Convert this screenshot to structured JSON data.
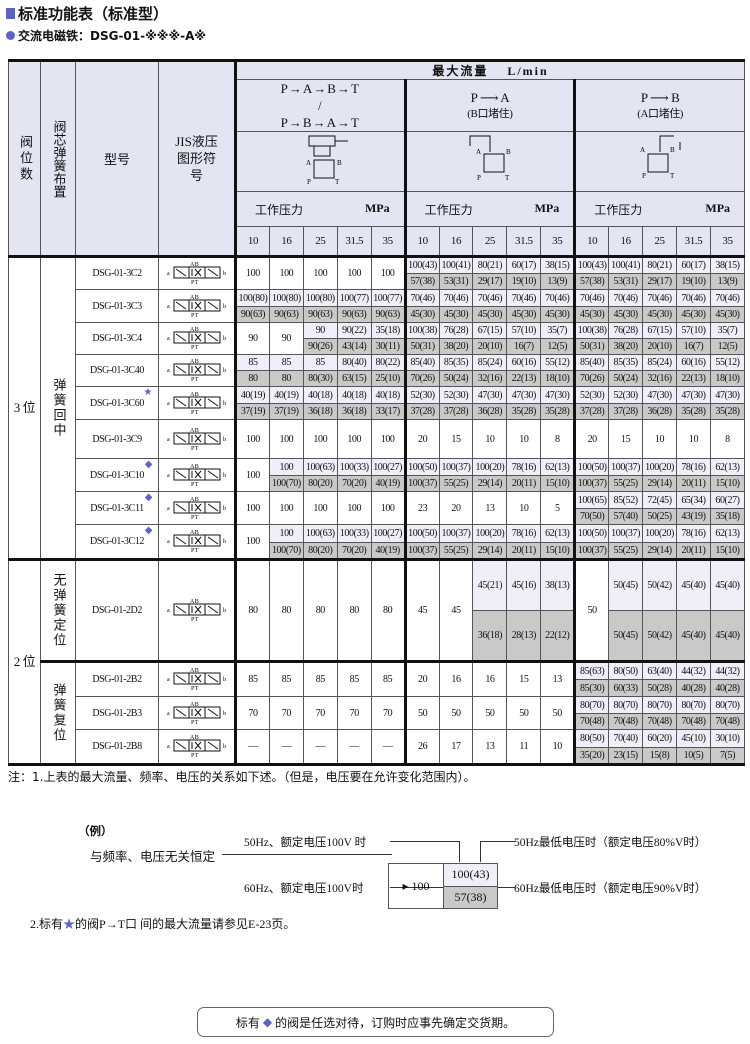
{
  "title": "标准功能表（标准型）",
  "subtitle": "交流电磁铁：DSG-01-※※※-A※",
  "header": {
    "col_positions": "阀位数",
    "col_spool": "阀芯弹簧布置",
    "col_model": "型号",
    "col_jis": "JIS液压图形符号",
    "max_flow": "最大流量　 L/min",
    "group1_flow": "P→A→B→T / P→B→A→T",
    "group2_flow": "P ⟶ A",
    "group2_note": "(B口堵住)",
    "group3_flow": "P ⟶ B",
    "group3_note": "(A口堵住)",
    "pressure_label": "工作压力",
    "pressure_unit": "MPa",
    "pressures": [
      "10",
      "16",
      "25",
      "31.5",
      "35"
    ]
  },
  "groups": [
    {
      "positions": "3 位",
      "spools": [
        {
          "label": "弹簧回中",
          "rows": 9
        }
      ]
    },
    {
      "positions": "2 位",
      "spools": [
        {
          "label": "无弹簧定位",
          "rows": 1
        },
        {
          "label": "弹簧复位",
          "rows": 3
        }
      ]
    }
  ],
  "rows": [
    {
      "model": "DSG-01-3C2",
      "mark": "",
      "cells": [
        "100",
        "100",
        "100",
        "100",
        "100",
        [
          "100(43)",
          "57(38)"
        ],
        [
          "100(41)",
          "53(31)"
        ],
        [
          "80(21)",
          "29(17)"
        ],
        [
          "60(17)",
          "19(10)"
        ],
        [
          "38(15)",
          "13(9)"
        ],
        [
          "100(43)",
          "57(38)"
        ],
        [
          "100(41)",
          "53(31)"
        ],
        [
          "80(21)",
          "29(17)"
        ],
        [
          "60(17)",
          "19(10)"
        ],
        [
          "38(15)",
          "13(9)"
        ]
      ]
    },
    {
      "model": "DSG-01-3C3",
      "mark": "",
      "cells": [
        [
          "100(80)",
          "90(63)"
        ],
        [
          "100(80)",
          "90(63)"
        ],
        [
          "100(80)",
          "90(63)"
        ],
        [
          "100(77)",
          "90(63)"
        ],
        [
          "100(77)",
          "90(63)"
        ],
        [
          "70(46)",
          "45(30)"
        ],
        [
          "70(46)",
          "45(30)"
        ],
        [
          "70(46)",
          "45(30)"
        ],
        [
          "70(46)",
          "45(30)"
        ],
        [
          "70(46)",
          "45(30)"
        ],
        [
          "70(46)",
          "45(30)"
        ],
        [
          "70(46)",
          "45(30)"
        ],
        [
          "70(46)",
          "45(30)"
        ],
        [
          "70(46)",
          "45(30)"
        ],
        [
          "70(46)",
          "45(30)"
        ]
      ]
    },
    {
      "model": "DSG-01-3C4",
      "mark": "",
      "cells": [
        "90",
        "90",
        [
          "90",
          "90(26)"
        ],
        [
          "90(22)",
          "43(14)"
        ],
        [
          "35(18)",
          "30(11)"
        ],
        [
          "100(38)",
          "50(31)"
        ],
        [
          "76(28)",
          "38(20)"
        ],
        [
          "67(15)",
          "20(10)"
        ],
        [
          "57(10)",
          "16(7)"
        ],
        [
          "35(7)",
          "12(5)"
        ],
        [
          "100(38)",
          "50(31)"
        ],
        [
          "76(28)",
          "38(20)"
        ],
        [
          "67(15)",
          "20(10)"
        ],
        [
          "57(10)",
          "16(7)"
        ],
        [
          "35(7)",
          "12(5)"
        ]
      ]
    },
    {
      "model": "DSG-01-3C40",
      "mark": "",
      "cells": [
        [
          "85",
          "80"
        ],
        [
          "85",
          "80"
        ],
        [
          "85",
          "80(30)"
        ],
        [
          "80(40)",
          "63(15)"
        ],
        [
          "80(22)",
          "25(10)"
        ],
        [
          "85(40)",
          "70(26)"
        ],
        [
          "85(35)",
          "50(24)"
        ],
        [
          "85(24)",
          "32(16)"
        ],
        [
          "60(16)",
          "22(13)"
        ],
        [
          "55(12)",
          "18(10)"
        ],
        [
          "85(40)",
          "70(26)"
        ],
        [
          "85(35)",
          "50(24)"
        ],
        [
          "85(24)",
          "32(16)"
        ],
        [
          "60(16)",
          "22(13)"
        ],
        [
          "55(12)",
          "18(10)"
        ]
      ]
    },
    {
      "model": "DSG-01-3C60",
      "mark": "star",
      "cells": [
        [
          "40(19)",
          "37(19)"
        ],
        [
          "40(19)",
          "37(19)"
        ],
        [
          "40(18)",
          "36(18)"
        ],
        [
          "40(18)",
          "36(18)"
        ],
        [
          "40(18)",
          "33(17)"
        ],
        [
          "52(30)",
          "37(28)"
        ],
        [
          "52(30)",
          "37(28)"
        ],
        [
          "47(30)",
          "36(28)"
        ],
        [
          "47(30)",
          "35(28)"
        ],
        [
          "47(30)",
          "35(28)"
        ],
        [
          "52(30)",
          "37(28)"
        ],
        [
          "52(30)",
          "37(28)"
        ],
        [
          "47(30)",
          "36(28)"
        ],
        [
          "47(30)",
          "35(28)"
        ],
        [
          "47(30)",
          "35(28)"
        ]
      ]
    },
    {
      "model": "DSG-01-3C9",
      "mark": "",
      "cells": [
        "100",
        "100",
        "100",
        "100",
        "100",
        "20",
        "15",
        "10",
        "10",
        "8",
        "20",
        "15",
        "10",
        "10",
        "8"
      ]
    },
    {
      "model": "DSG-01-3C10",
      "mark": "diamond",
      "cells": [
        "100",
        [
          "100",
          "100(70)"
        ],
        [
          "100(63)",
          "80(20)"
        ],
        [
          "100(33)",
          "70(20)"
        ],
        [
          "100(27)",
          "40(19)"
        ],
        [
          "100(50)",
          "100(37)"
        ],
        [
          "100(37)",
          "55(25)"
        ],
        [
          "100(20)",
          "29(14)"
        ],
        [
          "78(16)",
          "20(11)"
        ],
        [
          "62(13)",
          "15(10)"
        ],
        [
          "100(50)",
          "100(37)"
        ],
        [
          "100(37)",
          "55(25)"
        ],
        [
          "100(20)",
          "29(14)"
        ],
        [
          "78(16)",
          "20(11)"
        ],
        [
          "62(13)",
          "15(10)"
        ]
      ]
    },
    {
      "model": "DSG-01-3C11",
      "mark": "diamond",
      "cells": [
        "100",
        "100",
        "100",
        "100",
        "100",
        "23",
        "20",
        "13",
        "10",
        "5",
        [
          "100(65)",
          "70(50)"
        ],
        [
          "85(52)",
          "57(40)"
        ],
        [
          "72(45)",
          "50(25)"
        ],
        [
          "65(34)",
          "43(19)"
        ],
        [
          "60(27)",
          "35(18)"
        ]
      ]
    },
    {
      "model": "DSG-01-3C12",
      "mark": "diamond",
      "cells": [
        "100",
        [
          "100",
          "100(70)"
        ],
        [
          "100(63)",
          "80(20)"
        ],
        [
          "100(33)",
          "70(20)"
        ],
        [
          "100(27)",
          "40(19)"
        ],
        [
          "100(50)",
          "100(37)"
        ],
        [
          "100(37)",
          "55(25)"
        ],
        [
          "100(20)",
          "29(14)"
        ],
        [
          "78(16)",
          "20(11)"
        ],
        [
          "62(13)",
          "15(10)"
        ],
        [
          "100(50)",
          "100(37)"
        ],
        [
          "100(37)",
          "55(25)"
        ],
        [
          "100(20)",
          "29(14)"
        ],
        [
          "78(16)",
          "20(11)"
        ],
        [
          "62(13)",
          "15(10)"
        ]
      ]
    },
    {
      "model": "DSG-01-2D2",
      "mark": "",
      "cells": [
        "80",
        "80",
        "80",
        "80",
        "80",
        "45",
        "45",
        [
          "45(21)",
          "36(18)"
        ],
        [
          "45(16)",
          "28(13)"
        ],
        [
          "38(13)",
          "22(12)"
        ],
        "50",
        [
          "50(45)",
          "50(45)"
        ],
        [
          "50(42)",
          "50(42)"
        ],
        [
          "45(40)",
          "45(40)"
        ],
        [
          "45(40)",
          "45(40)"
        ]
      ]
    },
    {
      "model": "DSG-01-2B2",
      "mark": "",
      "cells": [
        "85",
        "85",
        "85",
        "85",
        "85",
        "20",
        "16",
        "16",
        "15",
        "13",
        [
          "85(63)",
          "85(30)"
        ],
        [
          "80(50)",
          "60(33)"
        ],
        [
          "63(40)",
          "50(28)"
        ],
        [
          "44(32)",
          "40(28)"
        ],
        [
          "44(32)",
          "40(28)"
        ]
      ]
    },
    {
      "model": "DSG-01-2B3",
      "mark": "",
      "cells": [
        "70",
        "70",
        "70",
        "70",
        "70",
        "50",
        "50",
        "50",
        "50",
        "50",
        [
          "80(70)",
          "70(48)"
        ],
        [
          "80(70)",
          "70(48)"
        ],
        [
          "80(70)",
          "70(48)"
        ],
        [
          "80(70)",
          "70(48)"
        ],
        [
          "80(70)",
          "70(48)"
        ]
      ]
    },
    {
      "model": "DSG-01-2B8",
      "mark": "",
      "cells": [
        "—",
        "—",
        "—",
        "—",
        "—",
        "26",
        "17",
        "13",
        "11",
        "10",
        [
          "80(50)",
          "35(20)"
        ],
        [
          "70(40)",
          "23(15)"
        ],
        [
          "60(20)",
          "15(8)"
        ],
        [
          "45(10)",
          "10(5)"
        ],
        [
          "30(10)",
          "7(5)"
        ]
      ]
    }
  ],
  "notes": {
    "note1": "注：1.上表的最大流量、频率、电压的关系如下述。（但是，电压要在允许变化范围内）。",
    "example": "（例）",
    "lbl_50hz_rated": "50Hz、额定电压100V 时",
    "lbl_50hz_min": "50Hz最低电压时（额定电压80%V时）",
    "lbl_const": "与频率、电压无关恒定",
    "lbl_60hz_rated": "60Hz、额定电压100V时",
    "lbl_60hz_min": "60Hz最低电压时（额定电压90%V时）",
    "ex_const": "100",
    "ex_top": "100(43)",
    "ex_bottom": "57(38)",
    "note2_pre": "2.标有",
    "note2_post": "的阀P→T口 间的最大流量请参见E-23页。",
    "footer_pre": "标有",
    "footer_post": "的阀是任选对待，订购时应事先确定交货期。"
  },
  "colors": {
    "accent": "#5b63c4",
    "header_bg": "#e3e5f3",
    "top_bg": "#eeeff9",
    "bottom_bg": "#c9c9c9"
  }
}
